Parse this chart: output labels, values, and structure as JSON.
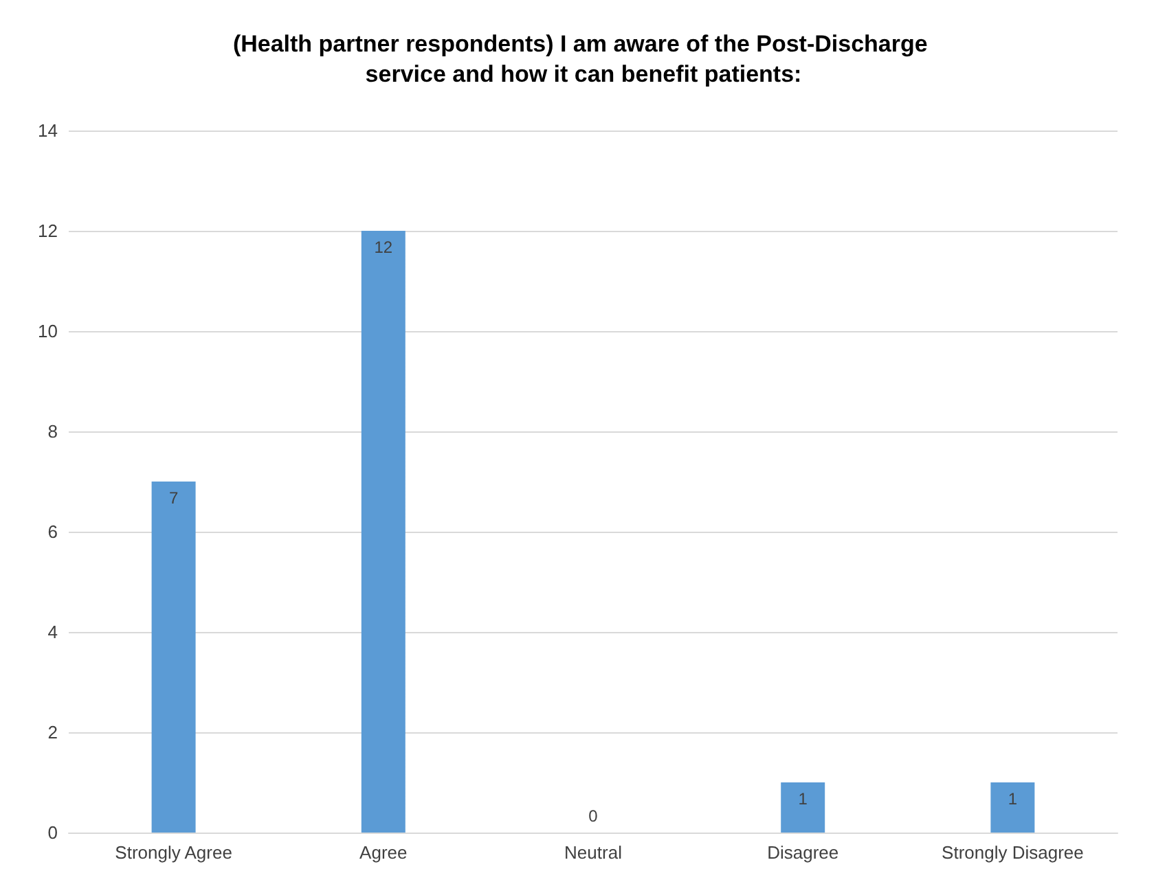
{
  "chart_data": {
    "type": "bar",
    "title": "(Health partner respondents) I am aware of the Post-Discharge service and how it can benefit patients:",
    "categories": [
      "Strongly Agree",
      "Agree",
      "Neutral",
      "Disagree",
      "Strongly Disagree"
    ],
    "values": [
      7,
      12,
      0,
      1,
      1
    ],
    "color": "#5b9bd5",
    "ylim": [
      0,
      14
    ],
    "yticks": [
      0,
      2,
      4,
      6,
      8,
      10,
      12,
      14
    ],
    "grid": "y",
    "data_labels": true
  }
}
